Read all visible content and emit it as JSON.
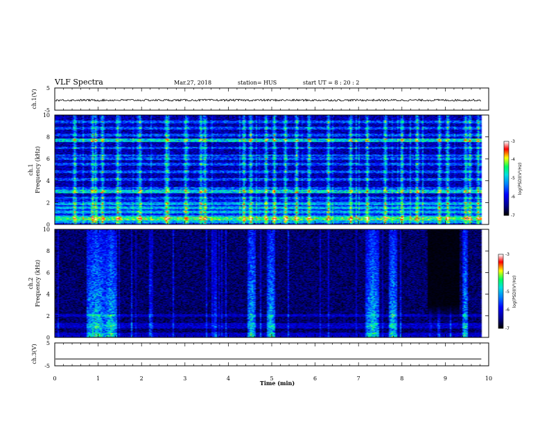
{
  "header": {
    "title": "VLF Spectra",
    "date": "Mar.27, 2018",
    "station": "station= HUS",
    "start": "start  UT =   8  : 20 : 2"
  },
  "chart_data": [
    {
      "type": "line",
      "ylabel": "ch.1(V)",
      "ylim": [
        -5,
        5
      ],
      "yticks": [
        "5",
        "-5"
      ],
      "xlim": [
        0,
        10
      ],
      "series": [
        {
          "values": [
            -0.5,
            -0.5
          ]
        }
      ]
    },
    {
      "type": "heatmap",
      "ylabel": "ch.1\nFrequency (kHz)",
      "ylabel_lines": [
        "ch.1",
        "Frequency (kHz)"
      ],
      "ylim": [
        0,
        10
      ],
      "yticks": [
        "0",
        "2",
        "4",
        "6",
        "8",
        "10"
      ],
      "xlim": [
        0,
        10
      ],
      "data_end_min": 9.83,
      "horizontal_bands_khz": [
        0.2,
        0.45,
        0.65,
        1.1,
        1.5,
        1.9,
        2.4,
        3.0,
        3.3,
        4.1,
        4.8,
        5.5,
        6.0,
        6.3,
        7.0,
        7.7,
        8.2,
        8.8,
        9.4
      ],
      "strong_bands_khz": [
        0.5,
        3.0,
        7.7
      ],
      "vertical_bursts_min": [
        0.45,
        0.85,
        0.92,
        1.1,
        1.45,
        1.95,
        2.55,
        2.6,
        3.0,
        3.35,
        3.45,
        4.35,
        4.5,
        4.85,
        5.05,
        5.3,
        5.55,
        5.85,
        6.3,
        6.8,
        7.2,
        7.6,
        8.0,
        8.35,
        8.85,
        9.05,
        9.45,
        9.55,
        9.75
      ],
      "colorbar": {
        "label": "log(PSD)(V²/Hz)",
        "ticks": [
          "-3",
          "-4",
          "-5",
          "-6",
          "-7"
        ],
        "range": [
          -7,
          -3
        ]
      }
    },
    {
      "type": "heatmap",
      "ylabel": "ch.2\nFrequency (kHz)",
      "ylabel_lines": [
        "ch.2",
        "Frequency (kHz)"
      ],
      "ylim": [
        0,
        10
      ],
      "yticks": [
        "0",
        "2",
        "4",
        "6",
        "8",
        "10"
      ],
      "xlim": [
        0,
        10
      ],
      "data_end_min": 9.83,
      "broadband_regions_min": [
        [
          0.75,
          1.15
        ],
        [
          1.15,
          1.4
        ],
        [
          4.45,
          4.6
        ],
        [
          4.9,
          5.05
        ],
        [
          7.2,
          7.45
        ],
        [
          7.7,
          7.85
        ],
        [
          9.4,
          9.5
        ]
      ],
      "quiet_region_min": [
        8.6,
        9.3
      ],
      "horizontal_bands_khz": [
        0.9,
        1.2,
        2.0
      ],
      "colorbar": {
        "label": "log(PSD)(V²/Hz)",
        "ticks": [
          "-3",
          "-4",
          "-5",
          "-6",
          "-7"
        ],
        "range": [
          -7,
          -3
        ]
      }
    },
    {
      "type": "line",
      "ylabel": "ch.3(V)",
      "ylim": [
        -5,
        5
      ],
      "yticks": [
        "5",
        "-5"
      ],
      "xlim": [
        0,
        10
      ],
      "xlabel": "Time (min)",
      "xticks": [
        "0",
        "1",
        "2",
        "3",
        "4",
        "5",
        "6",
        "7",
        "8",
        "9",
        "10"
      ],
      "series": [
        {
          "values": [
            -2.0,
            -2.0
          ]
        }
      ]
    }
  ],
  "colors": {
    "colormap": [
      "#000000",
      "#00008f",
      "#0000ff",
      "#0080ff",
      "#00e0e0",
      "#00ff60",
      "#ffff00",
      "#ff0000",
      "#ffffff"
    ]
  }
}
